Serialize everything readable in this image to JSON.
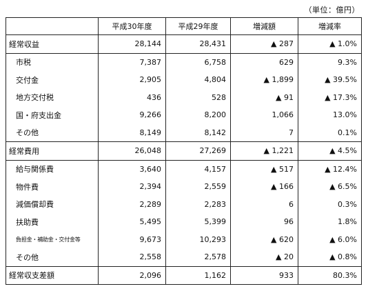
{
  "unit_label": "（単位：億円）",
  "headers": [
    "",
    "平成30年度",
    "平成29年度",
    "増減額",
    "増減率"
  ],
  "rows": [
    {
      "label": "経常収益",
      "values": [
        "28,144",
        "28,431",
        "▲ 287",
        "▲ 1.0%"
      ],
      "type": "group"
    },
    {
      "label": "市税",
      "values": [
        "7,387",
        "6,758",
        "629",
        "9.3%"
      ],
      "type": "sub"
    },
    {
      "label": "交付金",
      "values": [
        "2,905",
        "4,804",
        "▲ 1,899",
        "▲ 39.5%"
      ],
      "type": "sub"
    },
    {
      "label": "地方交付税",
      "values": [
        "436",
        "528",
        "▲ 91",
        "▲ 17.3%"
      ],
      "type": "sub"
    },
    {
      "label": "国・府支出金",
      "values": [
        "9,266",
        "8,200",
        "1,066",
        "13.0%"
      ],
      "type": "sub"
    },
    {
      "label": "その他",
      "values": [
        "8,149",
        "8,142",
        "7",
        "0.1%"
      ],
      "type": "sub"
    },
    {
      "label": "経常費用",
      "values": [
        "26,048",
        "27,269",
        "▲ 1,221",
        "▲ 4.5%"
      ],
      "type": "group"
    },
    {
      "label": "給与関係費",
      "values": [
        "3,640",
        "4,157",
        "▲ 517",
        "▲ 12.4%"
      ],
      "type": "sub"
    },
    {
      "label": "物件費",
      "values": [
        "2,394",
        "2,559",
        "▲ 166",
        "▲ 6.5%"
      ],
      "type": "sub"
    },
    {
      "label": "減価償却費",
      "values": [
        "2,289",
        "2,283",
        "6",
        "0.3%"
      ],
      "type": "sub"
    },
    {
      "label": "扶助費",
      "values": [
        "5,495",
        "5,399",
        "96",
        "1.8%"
      ],
      "type": "sub"
    },
    {
      "label": "負担金・補助金・交付金等",
      "values": [
        "9,673",
        "10,293",
        "▲ 620",
        "▲ 6.0%"
      ],
      "type": "sub",
      "small": true
    },
    {
      "label": "その他",
      "values": [
        "2,558",
        "2,578",
        "▲ 20",
        "▲ 0.8%"
      ],
      "type": "sub"
    },
    {
      "label": "経常収支差額",
      "values": [
        "2,096",
        "1,162",
        "933",
        "80.3%"
      ],
      "type": "group"
    }
  ]
}
